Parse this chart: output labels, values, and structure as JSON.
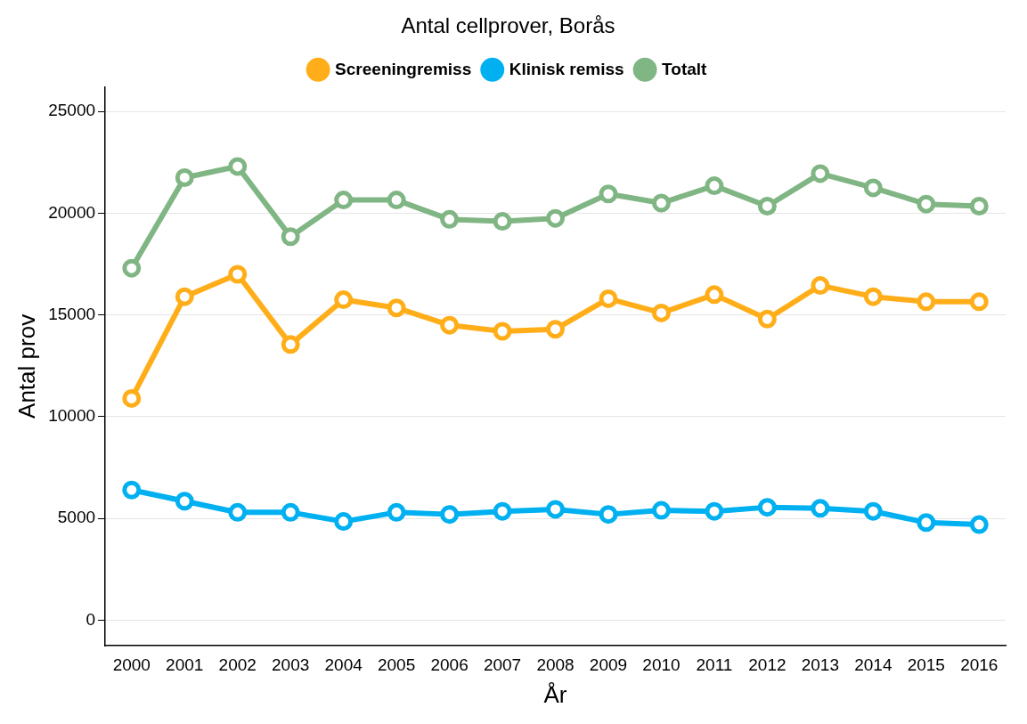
{
  "chart_data": {
    "type": "line",
    "title": "Antal cellprover, Borås",
    "xlabel": "År",
    "ylabel": "Antal prov",
    "categories": [
      "2000",
      "2001",
      "2002",
      "2003",
      "2004",
      "2005",
      "2006",
      "2007",
      "2008",
      "2009",
      "2010",
      "2011",
      "2012",
      "2013",
      "2014",
      "2015",
      "2016"
    ],
    "series": [
      {
        "name": "Screeningremiss",
        "color": "#ffae1a",
        "values": [
          10900,
          15900,
          17000,
          13550,
          15750,
          15350,
          14500,
          14200,
          14300,
          15800,
          15100,
          16000,
          14800,
          16450,
          15900,
          15650,
          15650
        ]
      },
      {
        "name": "Klinisk remiss",
        "color": "#00b0f0",
        "values": [
          6400,
          5850,
          5300,
          5300,
          4850,
          5300,
          5200,
          5350,
          5450,
          5200,
          5400,
          5350,
          5550,
          5500,
          5350,
          4800,
          4700
        ]
      },
      {
        "name": "Totalt",
        "color": "#80b584",
        "values": [
          17300,
          21750,
          22300,
          18850,
          20650,
          20650,
          19700,
          19600,
          19750,
          20950,
          20500,
          21350,
          20350,
          21950,
          21250,
          20450,
          20350
        ]
      }
    ],
    "ylim": [
      -1250,
      26200
    ],
    "yticks": [
      0,
      5000,
      10000,
      15000,
      20000,
      25000
    ],
    "grid": "y",
    "legend": "top",
    "marker": "circle",
    "line_style": "solid"
  }
}
